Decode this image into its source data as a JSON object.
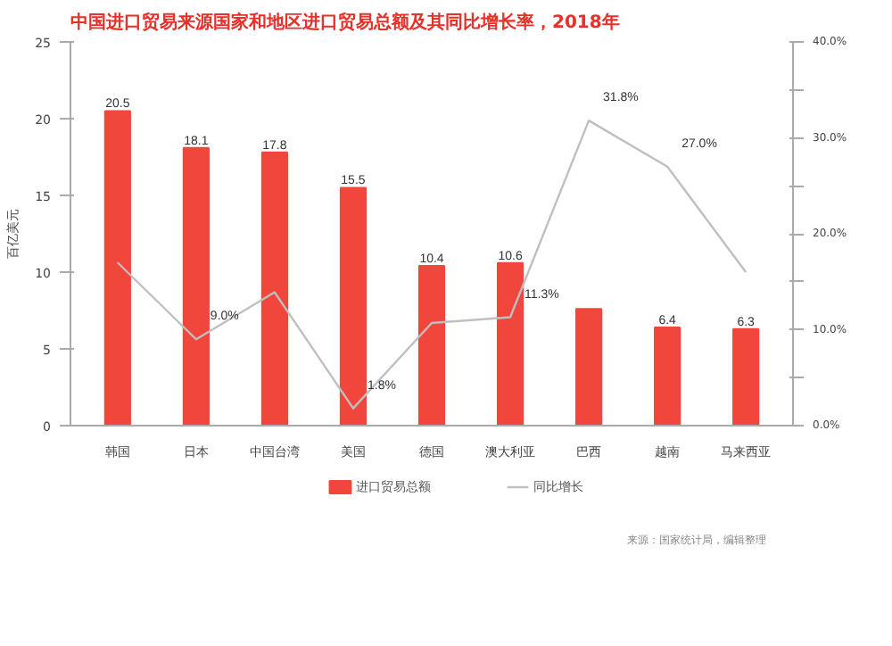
{
  "chart_data": {
    "type": "bar",
    "title": "中国进口贸易来源国家和地区进口贸易总额及其同比增长率，2018年",
    "ylabel": "百亿美元",
    "categories": [
      "韩国",
      "日本",
      "中国台湾",
      "美国",
      "德国",
      "澳大利亚",
      "巴西",
      "越南",
      "马来西亚"
    ],
    "series": [
      {
        "name": "进口贸易总额",
        "type": "bar",
        "color": "#f0463c",
        "values": [
          20.5,
          18.1,
          17.8,
          15.5,
          10.4,
          10.6,
          7.6,
          6.4,
          6.3
        ],
        "value_labels": [
          "20.5",
          "18.1",
          "17.8",
          "15.5",
          "10.4",
          "10.6",
          null,
          "6.4",
          "6.3"
        ]
      },
      {
        "name": "同比增长",
        "type": "line",
        "axis": "y2",
        "color": "#bfbfbf",
        "values": [
          17.0,
          9.0,
          13.9,
          1.8,
          10.7,
          11.3,
          31.8,
          27.0,
          16.0
        ],
        "value_labels": [
          null,
          "9.0%",
          null,
          "1.8%",
          null,
          "11.3%",
          "31.8%",
          "27.0%",
          null
        ]
      }
    ],
    "ylim": [
      0,
      25
    ],
    "yticks": [
      0,
      5,
      10,
      15,
      20,
      25
    ],
    "y2lim": [
      0,
      40
    ],
    "y2ticks": [
      {
        "value": 0,
        "label": "0.0%"
      },
      {
        "value": 5,
        "label": null
      },
      {
        "value": 10,
        "label": "10.0%"
      },
      {
        "value": 15,
        "label": null
      },
      {
        "value": 20,
        "label": "20.0%"
      },
      {
        "value": 25,
        "label": null
      },
      {
        "value": 30,
        "label": "30.0%"
      },
      {
        "value": 35,
        "label": null
      },
      {
        "value": 40,
        "label": "40.0%"
      }
    ],
    "legend": "bottom",
    "grid": false,
    "annotations": [
      "来源：国家统计局，编辑整理"
    ]
  }
}
